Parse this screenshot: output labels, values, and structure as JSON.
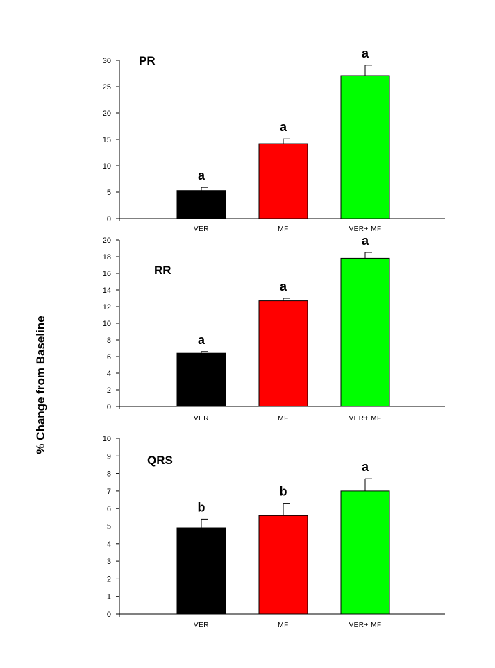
{
  "figure": {
    "ylabel": "% Change from Baseline"
  },
  "chart_data": [
    {
      "type": "bar",
      "title": "PR",
      "categories": [
        "VER",
        "MF",
        "VER+ MF"
      ],
      "values": [
        5.3,
        14.2,
        27.1
      ],
      "errors": [
        0.6,
        0.9,
        2.0
      ],
      "significance": [
        "a",
        "a",
        "a"
      ],
      "colors": [
        "#000000",
        "#ff0000",
        "#00ff00"
      ],
      "ylim": [
        0,
        30
      ],
      "yticks": [
        0,
        5,
        10,
        15,
        20,
        25,
        30
      ],
      "xlabel": "",
      "ylabel": ""
    },
    {
      "type": "bar",
      "title": "RR",
      "categories": [
        "VER",
        "MF",
        "VER+ MF"
      ],
      "values": [
        6.4,
        12.7,
        17.8
      ],
      "errors": [
        0.2,
        0.3,
        0.7
      ],
      "significance": [
        "a",
        "a",
        "a"
      ],
      "colors": [
        "#000000",
        "#ff0000",
        "#00ff00"
      ],
      "ylim": [
        0,
        20
      ],
      "yticks": [
        0,
        2,
        4,
        6,
        8,
        10,
        12,
        14,
        16,
        18,
        20
      ],
      "xlabel": "",
      "ylabel": ""
    },
    {
      "type": "bar",
      "title": "QRS",
      "categories": [
        "VER",
        "MF",
        "VER+ MF"
      ],
      "values": [
        4.9,
        5.6,
        7.0
      ],
      "errors": [
        0.5,
        0.7,
        0.7
      ],
      "significance": [
        "b",
        "b",
        "a"
      ],
      "colors": [
        "#000000",
        "#ff0000",
        "#00ff00"
      ],
      "ylim": [
        0,
        10
      ],
      "yticks": [
        0,
        1,
        2,
        3,
        4,
        5,
        6,
        7,
        8,
        9,
        10
      ],
      "xlabel": "",
      "ylabel": ""
    }
  ]
}
